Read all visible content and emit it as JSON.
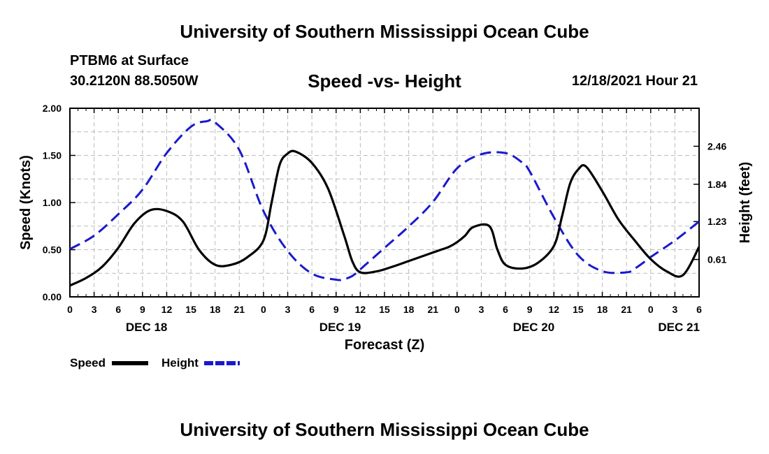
{
  "header": {
    "title": "University of Southern Mississippi Ocean Cube",
    "station": "PTBM6 at Surface",
    "coordinates": "30.2120N  88.5050W",
    "subtitle": "Speed -vs- Height",
    "datetime": "12/18/2021 Hour 21"
  },
  "footer": {
    "title": "University of Southern Mississippi Ocean Cube"
  },
  "legend": {
    "speed_label": "Speed",
    "height_label": "Height"
  },
  "chart_data": {
    "type": "line",
    "xlabel": "Forecast (Z)",
    "ylabel": "Speed (Knots)",
    "y2label": "Height (feet)",
    "x_range_hours": [
      0,
      78
    ],
    "ylim": [
      0,
      2.0
    ],
    "y2lim": [
      0,
      3.081
    ],
    "y_ticks": [
      "0.00",
      "0.50",
      "1.00",
      "1.50",
      "2.00"
    ],
    "y_tick_values": [
      0,
      0.5,
      1.0,
      1.5,
      2.0
    ],
    "y2_ticks": [
      "0.61",
      "1.23",
      "1.84",
      "2.46"
    ],
    "y2_tick_values": [
      0.61,
      1.23,
      1.84,
      2.46
    ],
    "x_ticks": [
      "0",
      "3",
      "6",
      "9",
      "12",
      "15",
      "18",
      "21",
      "0",
      "3",
      "6",
      "9",
      "12",
      "15",
      "18",
      "21",
      "0",
      "3",
      "6",
      "9",
      "12",
      "15",
      "18",
      "21",
      "0",
      "3",
      "6"
    ],
    "date_labels": [
      {
        "label": "DEC 18",
        "hour": 9.5
      },
      {
        "label": "DEC 19",
        "hour": 33.5
      },
      {
        "label": "DEC 20",
        "hour": 57.5
      },
      {
        "label": "DEC 21",
        "hour": 75.5
      }
    ],
    "grid": true,
    "series": [
      {
        "name": "Speed",
        "axis": "left",
        "color": "#000000",
        "style": "solid",
        "x": [
          0,
          2,
          4,
          6,
          8,
          10,
          12,
          14,
          16,
          18,
          20,
          22,
          24,
          25,
          26,
          27,
          28,
          30,
          32,
          34,
          35,
          36,
          38,
          40,
          42,
          44,
          46,
          47,
          48,
          49,
          50,
          52,
          53,
          54,
          56,
          58,
          60,
          61,
          62,
          63,
          64,
          66,
          68,
          70,
          72,
          74,
          76,
          78
        ],
        "values": [
          0.12,
          0.2,
          0.32,
          0.52,
          0.78,
          0.92,
          0.91,
          0.8,
          0.5,
          0.34,
          0.34,
          0.42,
          0.6,
          1.0,
          1.4,
          1.52,
          1.54,
          1.42,
          1.15,
          0.65,
          0.38,
          0.26,
          0.27,
          0.32,
          0.38,
          0.44,
          0.5,
          0.53,
          0.58,
          0.65,
          0.74,
          0.75,
          0.5,
          0.34,
          0.3,
          0.36,
          0.54,
          0.85,
          1.2,
          1.35,
          1.38,
          1.12,
          0.82,
          0.6,
          0.4,
          0.27,
          0.23,
          0.53
        ]
      },
      {
        "name": "Height",
        "axis": "right",
        "color": "#1a1acc",
        "style": "dashed",
        "x": [
          0,
          3,
          6,
          9,
          12,
          15,
          17,
          18,
          21,
          24,
          27,
          30,
          33,
          34,
          35,
          36,
          39,
          42,
          45,
          48,
          51,
          54,
          56,
          57,
          60,
          63,
          66,
          69,
          70,
          71,
          72,
          75,
          78
        ],
        "values": [
          0.78,
          1.0,
          1.35,
          1.75,
          2.35,
          2.78,
          2.87,
          2.85,
          2.4,
          1.4,
          0.75,
          0.38,
          0.28,
          0.29,
          0.34,
          0.45,
          0.8,
          1.15,
          1.55,
          2.1,
          2.33,
          2.35,
          2.2,
          2.05,
          1.3,
          0.68,
          0.42,
          0.4,
          0.46,
          0.55,
          0.65,
          0.92,
          1.23
        ]
      }
    ]
  }
}
